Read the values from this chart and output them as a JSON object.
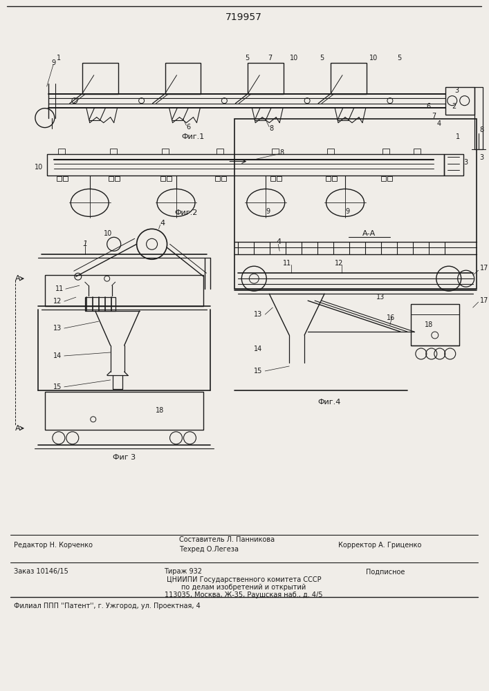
{
  "title": "719957",
  "bg_color": "#f0ede8",
  "line_color": "#1a1a1a",
  "fig1_label": "Фиг.1",
  "fig2_label": "Фиг.2",
  "fig3_label": "Фиг 3",
  "fig4_label": "Фиг.4",
  "section_label": "А-А",
  "editor_line": "Редактор Н. Корченко",
  "composer_line": "Составитель Л. Панникова",
  "techred_line": "Техред О.Легеза",
  "corrector_line": "Корректор А. Гриценко",
  "order_line": "Заказ 10146/15",
  "tirazh_line": "Тираж 932",
  "podpisnoe_line": "Подписное",
  "cniip_line": "ЦНИИПИ Государственного комитета СССР",
  "affairs_line": "по делам изобретений и открытий",
  "address_line": "113035, Москва, Ж-35, Раушская наб., д. 4/5",
  "filial_line": "Филиал ППП ''Патент'', г. Ужгород, ул. Проектная, 4"
}
